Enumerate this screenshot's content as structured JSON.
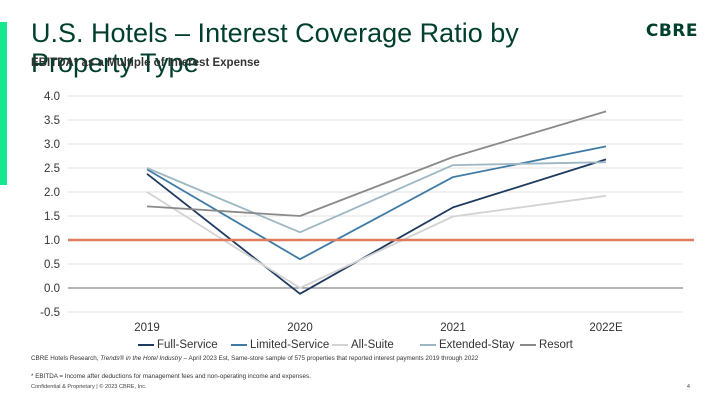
{
  "header": {
    "title": "U.S. Hotels – Interest Coverage Ratio by Property Type",
    "subtitle": "EBITDA* as a Multiple of Interest Expense",
    "logo_text": "CBRE",
    "accent_color": "#17e88f",
    "brand_color": "#003f2d"
  },
  "chart_data": {
    "type": "line",
    "categories": [
      "2019",
      "2020",
      "2021",
      "2022E"
    ],
    "series": [
      {
        "name": "Full-Service",
        "values": [
          2.38,
          -0.12,
          1.68,
          2.68
        ],
        "color": "#1f3a5f"
      },
      {
        "name": "Limited-Service",
        "values": [
          2.47,
          0.6,
          2.31,
          2.95
        ],
        "color": "#3f7ba6"
      },
      {
        "name": "All-Suite",
        "values": [
          2.0,
          0.0,
          1.49,
          1.92
        ],
        "color": "#d3d3d3"
      },
      {
        "name": "Extended-Stay",
        "values": [
          2.5,
          1.16,
          2.56,
          2.62
        ],
        "color": "#9db8c3"
      },
      {
        "name": "Resort",
        "values": [
          1.7,
          1.5,
          2.73,
          3.68
        ],
        "color": "#8a8a8a"
      }
    ],
    "ylim": [
      -0.5,
      4.0
    ],
    "y_ticks": [
      "4.0",
      "3.5",
      "3.0",
      "2.5",
      "2.0",
      "1.5",
      "1.0",
      "0.5",
      "0.0",
      "-0.5"
    ],
    "y_tick_values": [
      4.0,
      3.5,
      3.0,
      2.5,
      2.0,
      1.5,
      1.0,
      0.5,
      0.0,
      -0.5
    ],
    "reference_line": {
      "value": 1.0,
      "color": "#e07b5f"
    },
    "grid": true,
    "legend_position": "bottom"
  },
  "footer": {
    "source_prefix": "CBRE Hotels Research, ",
    "source_italic": "Trends® in the Hotel Industry",
    "source_suffix": " – April 2023 Est, Same-store sample of 575 properties that reported interest payments 2019 through 2022",
    "footnote": "* EBITDA = Income after deductions for management fees and non-operating income and expenses.",
    "confidential": "Confidential & Proprietary | © 2023 CBRE, Inc.",
    "page_number": "4"
  }
}
